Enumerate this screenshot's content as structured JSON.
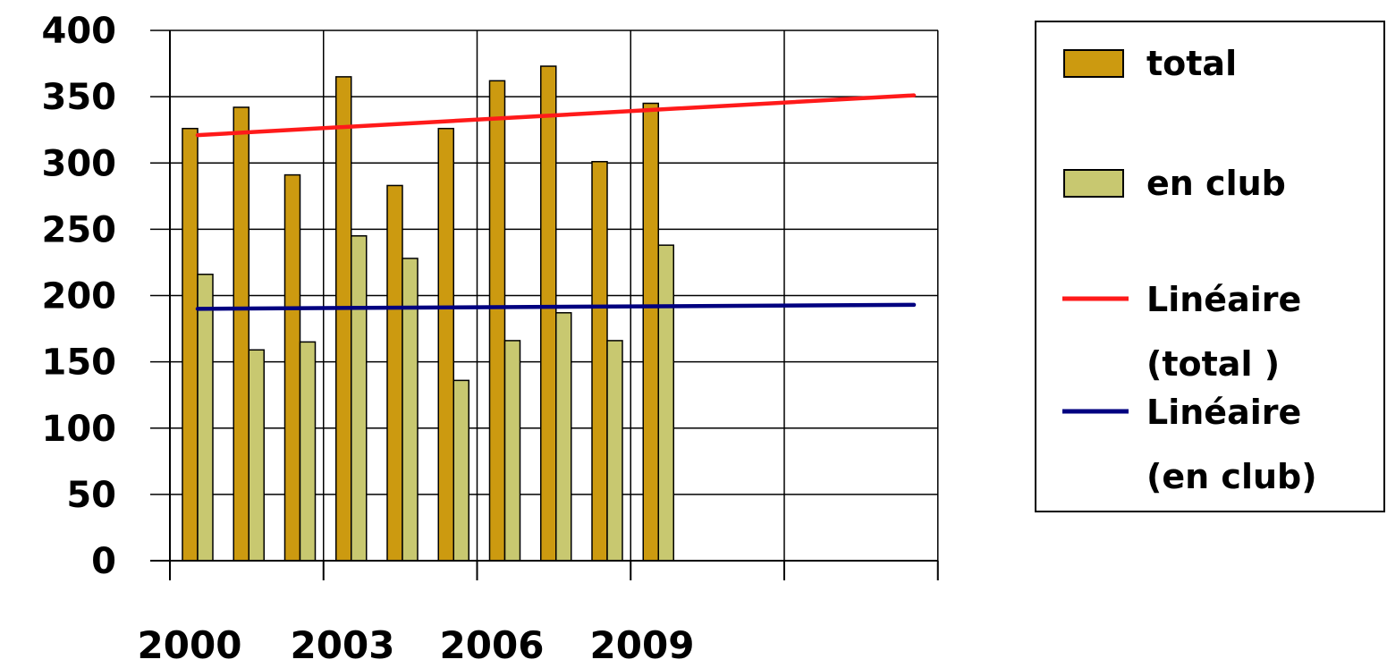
{
  "chart_data": {
    "type": "bar",
    "categories": [
      "2000",
      "2001",
      "2002",
      "2003",
      "2004",
      "2005",
      "2006",
      "2007",
      "2008",
      "2009"
    ],
    "x_tick_labels": [
      "2000",
      "2003",
      "2006",
      "2009"
    ],
    "series": [
      {
        "name": "total",
        "color": "#cc9a10",
        "values": [
          326,
          342,
          291,
          365,
          283,
          326,
          362,
          373,
          301,
          345
        ]
      },
      {
        "name": "en club",
        "color": "#c8c870",
        "values": [
          216,
          159,
          165,
          245,
          228,
          136,
          166,
          187,
          166,
          238
        ]
      }
    ],
    "trendlines": [
      {
        "name": "Linéaire (total )",
        "name_lines": [
          "Linéaire",
          "(total )"
        ],
        "color": "#ff1a1a",
        "x_range": [
          2000,
          2014
        ],
        "start": 321,
        "end": 351
      },
      {
        "name": "Linéaire (en club)",
        "name_lines": [
          "Linéaire",
          "(en club)"
        ],
        "color": "#000080",
        "x_range": [
          2000,
          2014
        ],
        "start": 190,
        "end": 193
      }
    ],
    "title": "",
    "xlabel": "",
    "ylabel": "",
    "ylim": [
      0,
      400
    ],
    "yticks": [
      "0",
      "50",
      "100",
      "150",
      "200",
      "250",
      "300",
      "350",
      "400"
    ],
    "grid": true,
    "legend_position": "right"
  }
}
